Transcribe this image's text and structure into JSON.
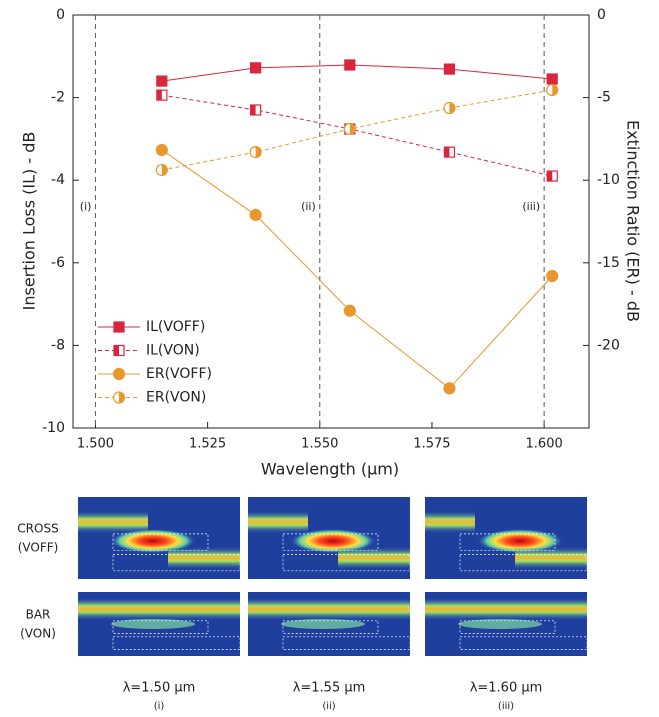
{
  "chart_data": {
    "type": "line",
    "x_label": "Wavelength (μm)",
    "y_label": "Insertion Loss (IL) - dB",
    "y2_label": "Extinction Ratio (ER) - dB",
    "x": [
      1.5148,
      1.5357,
      1.5567,
      1.5789,
      1.6018
    ],
    "xlim": [
      1.495,
      1.61
    ],
    "xticks": [
      {
        "value": 1.5,
        "label": "1.500"
      },
      {
        "value": 1.525,
        "label": "1.525"
      },
      {
        "value": 1.55,
        "label": "1.550"
      },
      {
        "value": 1.575,
        "label": "1.575"
      },
      {
        "value": 1.6,
        "label": "1.600"
      }
    ],
    "ylim": [
      -10,
      0
    ],
    "yticks": [
      0,
      -2,
      -4,
      -6,
      -8,
      -10
    ],
    "y2lim": [
      -25,
      0
    ],
    "y2ticks": [
      0,
      -5,
      -10,
      -15,
      -20
    ],
    "legend": "lower left",
    "series": [
      {
        "name": "IL(VOFF)",
        "color": "#d7263d",
        "marker": "square",
        "fill": "full",
        "linestyle": "solid",
        "values": [
          -1.6,
          -1.28,
          -1.21,
          -1.31,
          -1.55
        ]
      },
      {
        "name": "IL(VON)",
        "color": "#d7263d",
        "marker": "square",
        "fill": "half",
        "linestyle": "dashed",
        "values": [
          -1.94,
          -2.3,
          -2.76,
          -3.32,
          -3.9
        ]
      },
      {
        "name": "ER(VOFF)",
        "color": "#e8972e",
        "marker": "circle",
        "fill": "full",
        "linestyle": "solid",
        "axis": "y2",
        "values": [
          -8.17,
          -12.1,
          -17.9,
          -22.6,
          -15.8
        ]
      },
      {
        "name": "ER(VON)",
        "color": "#e8972e",
        "marker": "circle",
        "fill": "half",
        "linestyle": "dashed",
        "axis": "y2",
        "values": [
          -9.38,
          -8.3,
          -6.9,
          -5.63,
          -4.54
        ]
      }
    ],
    "markers": [
      {
        "x": 1.5,
        "label": "(i)"
      },
      {
        "x": 1.55,
        "label": "(ii)"
      },
      {
        "x": 1.6,
        "label": "(iii)"
      }
    ]
  },
  "panels": {
    "rows": [
      {
        "lines": [
          "CROSS",
          "(VOFF)"
        ]
      },
      {
        "lines": [
          "BAR",
          "(VON)"
        ]
      }
    ],
    "columns": [
      {
        "label": "λ=1.50 μm",
        "sub": "(i)"
      },
      {
        "label": "λ=1.55 μm",
        "sub": "(ii)"
      },
      {
        "label": "λ=1.60 μm",
        "sub": "(iii)"
      }
    ]
  }
}
